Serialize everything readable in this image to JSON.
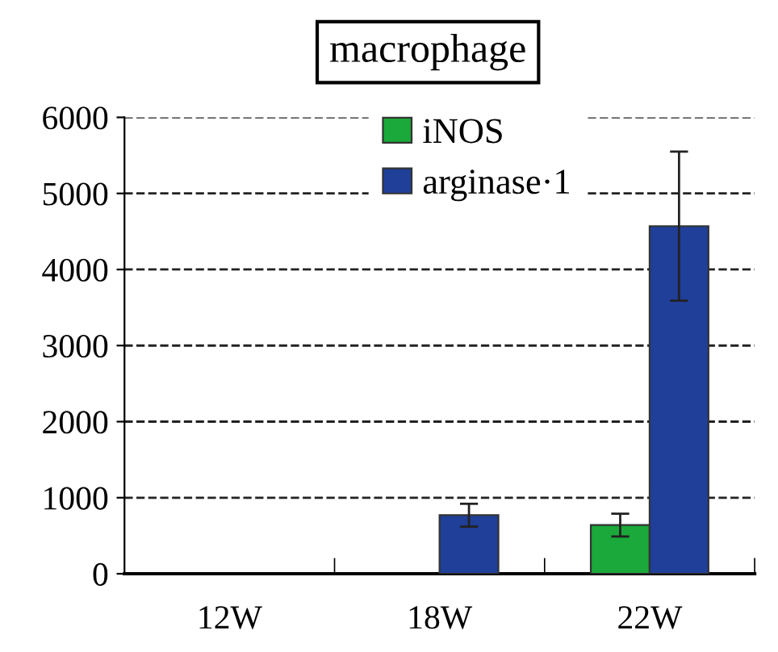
{
  "chart_data": {
    "type": "bar",
    "title": "macrophage",
    "categories": [
      "12W",
      "18W",
      "22W"
    ],
    "series": [
      {
        "name": "iNOS",
        "color": "#1aa93a",
        "values": [
          null,
          null,
          640
        ],
        "errors": [
          null,
          null,
          150
        ]
      },
      {
        "name": "arginase·1",
        "color": "#1f3f99",
        "values": [
          null,
          770,
          4570
        ],
        "errors": [
          null,
          150,
          980
        ]
      }
    ],
    "ylim": [
      0,
      6000
    ],
    "yticks": [
      0,
      1000,
      2000,
      3000,
      4000,
      5000,
      6000
    ],
    "grid": "y",
    "legend": "top right"
  }
}
